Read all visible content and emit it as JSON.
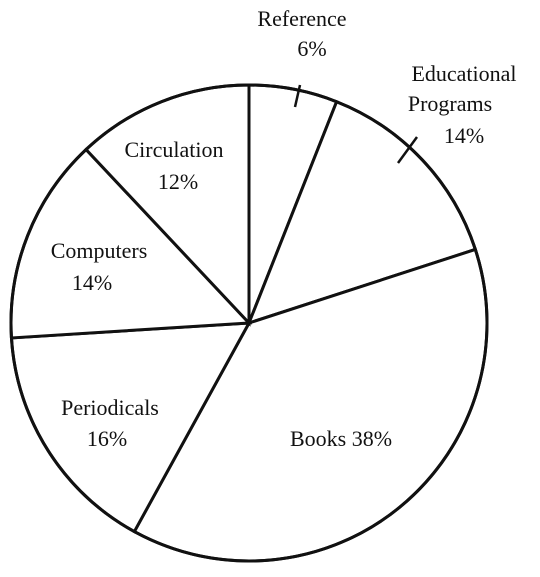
{
  "chart_data": {
    "type": "pie",
    "slices": [
      {
        "name": "Reference",
        "value": 6,
        "value_label": "6%"
      },
      {
        "name": "Educational Programs",
        "value": 14,
        "value_label": "14%"
      },
      {
        "name": "Books",
        "value": 38,
        "value_label": "38%"
      },
      {
        "name": "Periodicals",
        "value": 16,
        "value_label": "16%"
      },
      {
        "name": "Computers",
        "value": 14,
        "value_label": "14%"
      },
      {
        "name": "Circulation",
        "value": 12,
        "value_label": "12%"
      }
    ],
    "label_lines": {
      "reference": [
        "Reference",
        "6%"
      ],
      "educational": [
        "Educational",
        "Programs",
        "14%"
      ],
      "books": [
        "Books 38%"
      ],
      "periodicals": [
        "Periodicals",
        "16%"
      ],
      "computers": [
        "Computers",
        "14%"
      ],
      "circulation": [
        "Circulation",
        "12%"
      ]
    },
    "start_angle_deg": 0,
    "direction": "clockwise",
    "colors": {
      "fill": "#ffffff",
      "stroke": "#111111"
    }
  }
}
